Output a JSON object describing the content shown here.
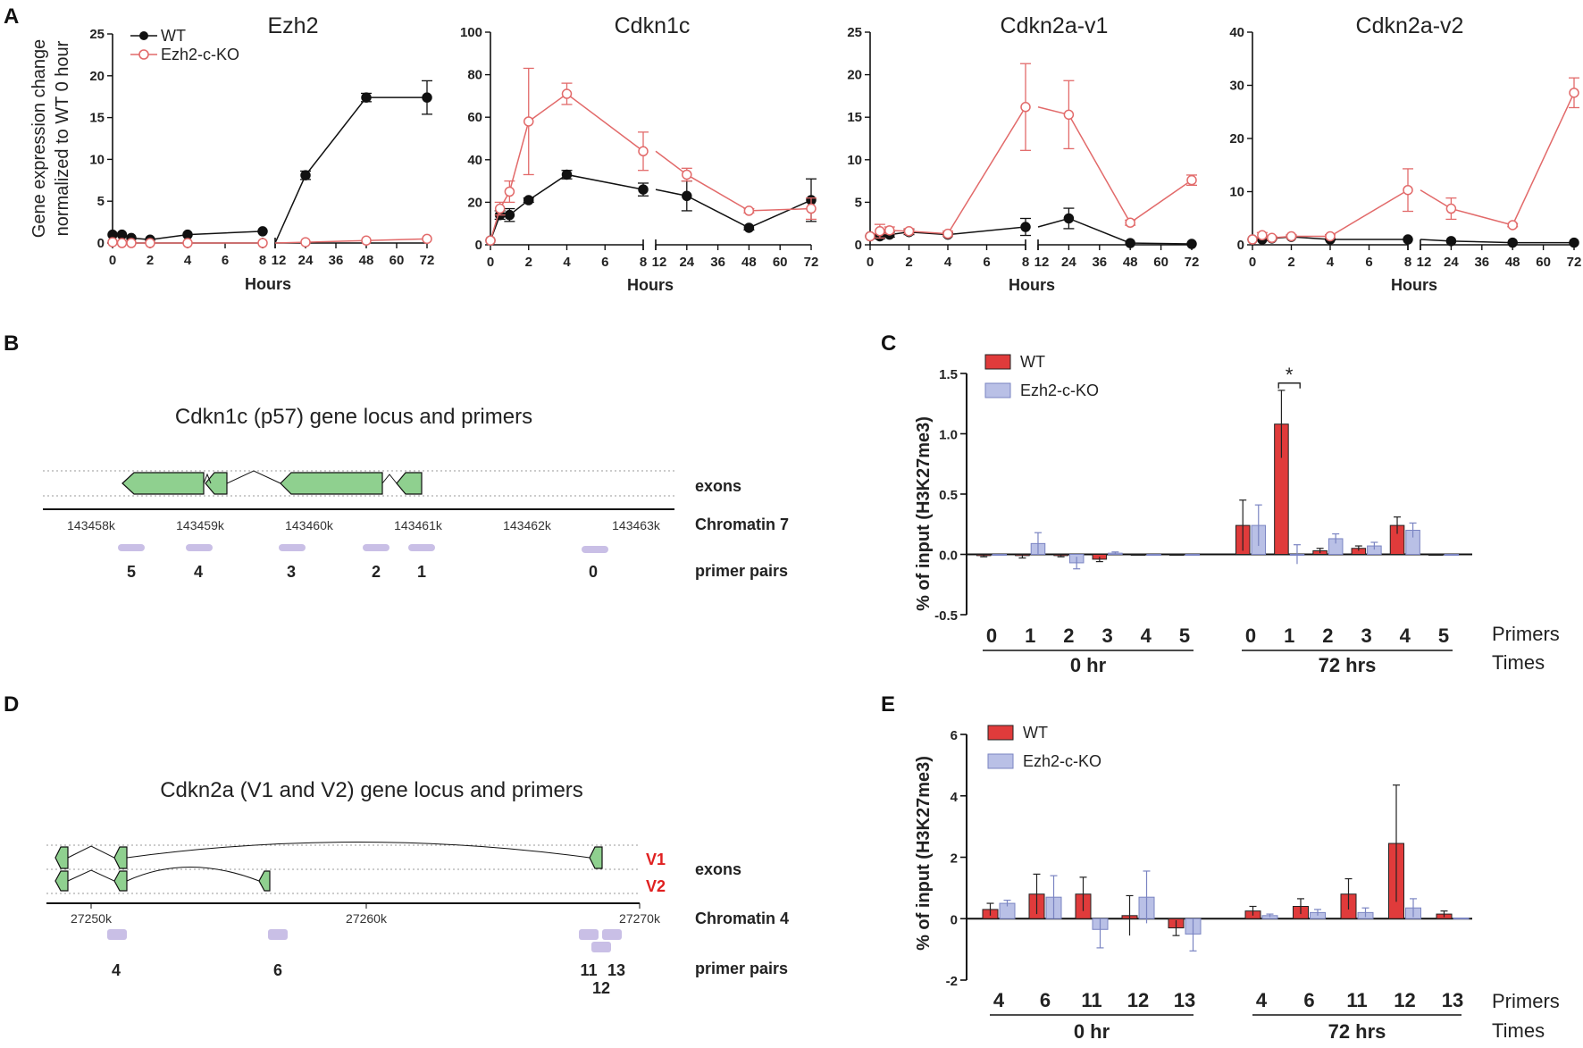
{
  "colors": {
    "wt": "#111111",
    "ko": "#e26a6a",
    "wt_bar": "#e03b3b",
    "ko_bar": "#b9c0e6",
    "exon": "#8fd08f",
    "primer": "#c9bfe6",
    "variant": "#e02020"
  },
  "panel_labels": [
    "A",
    "B",
    "C",
    "D",
    "E"
  ],
  "chart_data": [
    {
      "id": "ezh2",
      "type": "line",
      "title": "Ezh2",
      "ylabel_lines": [
        "Gene expression change",
        "normalized to WT 0 hour"
      ],
      "xlabel": "Hours",
      "ylim": [
        0,
        25
      ],
      "yticks": [
        0,
        5,
        10,
        15,
        20,
        25
      ],
      "x_left": [
        0,
        0.5,
        1,
        2,
        4,
        8
      ],
      "x_right": [
        12,
        24,
        48,
        72
      ],
      "xticks_left": [
        "0",
        "2",
        "4",
        "6",
        "8"
      ],
      "xticks_right": [
        "12",
        "24",
        "36",
        "48",
        "60",
        "72"
      ],
      "legend": [
        "WT",
        "Ezh2-c-KO"
      ],
      "series": [
        {
          "name": "WT",
          "left": [
            1.0,
            1.0,
            0.6,
            0.4,
            1.0,
            1.4
          ],
          "right": [
            0.0,
            8.1,
            17.4,
            17.4
          ],
          "err_left": [
            0,
            0,
            0,
            0,
            0,
            0
          ],
          "err_right": [
            0,
            0.5,
            0.5,
            2.0
          ]
        },
        {
          "name": "Ezh2-c-KO",
          "left": [
            0.1,
            0.0,
            0.0,
            0.0,
            0.0,
            0.0
          ],
          "right": [
            0.0,
            0.1,
            0.3,
            0.5
          ],
          "err_left": [
            0,
            0,
            0,
            0,
            0,
            0
          ],
          "err_right": [
            0,
            0,
            0,
            0
          ]
        }
      ]
    },
    {
      "id": "cdkn1c",
      "type": "line",
      "title": "Cdkn1c",
      "xlabel": "Hours",
      "ylim": [
        0,
        100
      ],
      "yticks": [
        0,
        20,
        40,
        60,
        80,
        100
      ],
      "x_left": [
        0,
        0.5,
        1,
        2,
        4,
        8
      ],
      "x_right": [
        12,
        24,
        48,
        72
      ],
      "xticks_left": [
        "0",
        "2",
        "4",
        "6",
        "8"
      ],
      "xticks_right": [
        "12",
        "24",
        "36",
        "48",
        "60",
        "72"
      ],
      "series": [
        {
          "name": "WT",
          "left": [
            2,
            14,
            14,
            21,
            33,
            26
          ],
          "right": [
            26,
            23,
            8,
            21
          ],
          "err_left": [
            0,
            2,
            3,
            1,
            2,
            3
          ],
          "err_right": [
            0,
            7,
            1,
            10
          ]
        },
        {
          "name": "Ezh2-c-KO",
          "left": [
            2,
            17,
            25,
            58,
            71,
            44
          ],
          "right": [
            44,
            33,
            16,
            17
          ],
          "err_left": [
            0,
            3,
            5,
            25,
            5,
            9
          ],
          "err_right": [
            0,
            3,
            1,
            5
          ]
        }
      ]
    },
    {
      "id": "cdkn2a_v1",
      "type": "line",
      "title": "Cdkn2a-v1",
      "xlabel": "Hours",
      "ylim": [
        0,
        25
      ],
      "yticks": [
        0,
        5,
        10,
        15,
        20,
        25
      ],
      "x_left": [
        0,
        0.5,
        1,
        2,
        4,
        8
      ],
      "x_right": [
        12,
        24,
        48,
        72
      ],
      "xticks_left": [
        "0",
        "2",
        "4",
        "6",
        "8"
      ],
      "xticks_right": [
        "12",
        "24",
        "36",
        "48",
        "60",
        "72"
      ],
      "series": [
        {
          "name": "WT",
          "left": [
            1.0,
            1.0,
            1.2,
            1.5,
            1.2,
            2.1
          ],
          "right": [
            2.1,
            3.1,
            0.2,
            0.1
          ],
          "err_left": [
            0,
            0.3,
            0.3,
            0.3,
            0.2,
            1.0
          ],
          "err_right": [
            0,
            1.2,
            0,
            0
          ]
        },
        {
          "name": "Ezh2-c-KO",
          "left": [
            1.0,
            1.6,
            1.7,
            1.6,
            1.3,
            16.2
          ],
          "right": [
            16.2,
            15.3,
            2.6,
            7.6
          ],
          "err_left": [
            0,
            0.8,
            0.4,
            0.3,
            0.3,
            5.1
          ],
          "err_right": [
            0,
            4.0,
            0.3,
            0.6
          ]
        }
      ]
    },
    {
      "id": "cdkn2a_v2",
      "type": "line",
      "title": "Cdkn2a-v2",
      "xlabel": "Hours",
      "ylim": [
        0,
        40
      ],
      "yticks": [
        0,
        10,
        20,
        30,
        40
      ],
      "x_left": [
        0,
        0.5,
        1,
        2,
        4,
        8
      ],
      "x_right": [
        12,
        24,
        48,
        72
      ],
      "xticks_left": [
        "0",
        "2",
        "4",
        "6",
        "8"
      ],
      "xticks_right": [
        "12",
        "24",
        "36",
        "48",
        "60",
        "72"
      ],
      "series": [
        {
          "name": "WT",
          "left": [
            1.0,
            1.0,
            1.2,
            1.5,
            1.0,
            1.0
          ],
          "right": [
            1.0,
            0.7,
            0.4,
            0.4
          ],
          "err_left": [
            0,
            0.2,
            0.2,
            0.2,
            0.1,
            0
          ],
          "err_right": [
            0,
            0,
            0,
            0
          ]
        },
        {
          "name": "Ezh2-c-KO",
          "left": [
            1.0,
            1.8,
            1.3,
            1.6,
            1.6,
            10.3
          ],
          "right": [
            10.3,
            6.8,
            3.7,
            28.6
          ],
          "err_left": [
            0,
            0.5,
            0.3,
            0.3,
            0.3,
            4.0
          ],
          "err_right": [
            0,
            2.0,
            0.3,
            2.8
          ]
        }
      ]
    },
    {
      "id": "panel_c",
      "type": "bar",
      "ylabel": "% of input (H3K27me3)",
      "ylim": [
        -0.5,
        1.5
      ],
      "yticks": [
        "-0.5",
        "0.0",
        "0.5",
        "1.0",
        "1.5"
      ],
      "legend": [
        "WT",
        "Ezh2-c-KO"
      ],
      "groups": [
        {
          "label": "0 hr",
          "primers": [
            "0",
            "1",
            "2",
            "3",
            "4",
            "5"
          ],
          "wt": [
            -0.01,
            -0.01,
            -0.01,
            -0.04,
            0.0,
            0.0
          ],
          "ko": [
            0.0,
            0.09,
            -0.07,
            0.01,
            0.0,
            0.0
          ],
          "wt_err": [
            0.01,
            0.02,
            0.01,
            0.02,
            0,
            0
          ],
          "ko_err": [
            0,
            0.09,
            0.05,
            0.01,
            0,
            0
          ]
        },
        {
          "label": "72 hrs",
          "primers": [
            "0",
            "1",
            "2",
            "3",
            "4",
            "5"
          ],
          "wt": [
            0.24,
            1.08,
            0.03,
            0.05,
            0.24,
            0.0
          ],
          "ko": [
            0.24,
            0.0,
            0.13,
            0.07,
            0.2,
            0.0
          ],
          "wt_err": [
            0.21,
            0.28,
            0.02,
            0.02,
            0.07,
            0
          ],
          "ko_err": [
            0.17,
            0.08,
            0.04,
            0.03,
            0.06,
            0
          ]
        }
      ],
      "annotation": "*",
      "axis_side_labels": [
        "Primers",
        "Times"
      ]
    },
    {
      "id": "panel_e",
      "type": "bar",
      "ylabel": "% of input (H3K27me3)",
      "ylim": [
        -2,
        6
      ],
      "yticks": [
        "-2",
        "0",
        "2",
        "4",
        "6"
      ],
      "legend": [
        "WT",
        "Ezh2-c-KO"
      ],
      "groups": [
        {
          "label": "0 hr",
          "primers": [
            "4",
            "6",
            "11",
            "12",
            "13"
          ],
          "wt": [
            0.3,
            0.8,
            0.8,
            0.1,
            -0.3
          ],
          "ko": [
            0.5,
            0.7,
            -0.35,
            0.7,
            -0.5
          ],
          "wt_err": [
            0.2,
            0.65,
            0.55,
            0.65,
            0.25
          ],
          "ko_err": [
            0.1,
            0.7,
            0.6,
            0.85,
            0.55
          ]
        },
        {
          "label": "72 hrs",
          "primers": [
            "4",
            "6",
            "11",
            "12",
            "13"
          ],
          "wt": [
            0.25,
            0.4,
            0.8,
            2.45,
            0.15
          ],
          "ko": [
            0.1,
            0.2,
            0.2,
            0.35,
            0.02
          ],
          "wt_err": [
            0.15,
            0.25,
            0.5,
            1.9,
            0.1
          ],
          "ko_err": [
            0.05,
            0.1,
            0.15,
            0.3,
            0
          ]
        }
      ],
      "axis_side_labels": [
        "Primers",
        "Times"
      ]
    }
  ],
  "locus_b": {
    "title": "Cdkn1c (p57) gene locus and primers",
    "coords": [
      "143458k",
      "143459k",
      "143460k",
      "143461k",
      "143462k",
      "143463k"
    ],
    "side_labels": [
      "exons",
      "Chromatin 7",
      "primer pairs"
    ],
    "primers": [
      "5",
      "4",
      "3",
      "2",
      "1",
      "0"
    ]
  },
  "locus_d": {
    "title": "Cdkn2a (V1 and V2) gene locus and primers",
    "coords": [
      "27250k",
      "27260k",
      "27270k"
    ],
    "variants": [
      "V1",
      "V2"
    ],
    "side_labels": [
      "exons",
      "Chromatin 4",
      "primer pairs"
    ],
    "primers": [
      "4",
      "6",
      "11",
      "13",
      "12"
    ]
  }
}
